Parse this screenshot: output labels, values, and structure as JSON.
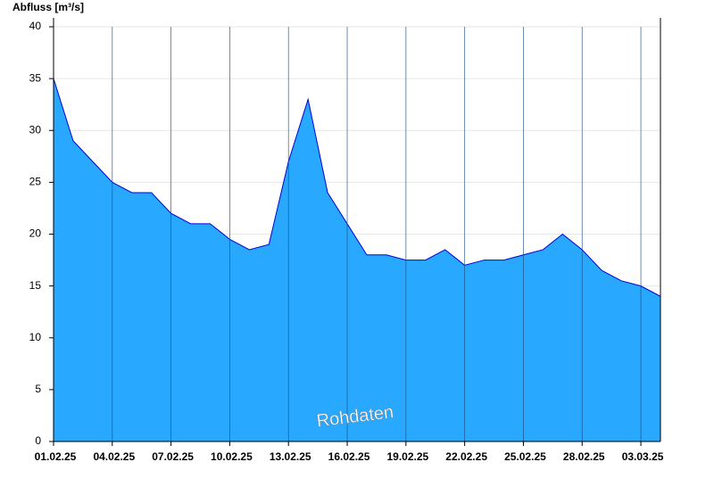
{
  "chart_data": {
    "type": "area",
    "y_label": "Abfluss [m³/s]",
    "annotation": "Rohdaten",
    "x": [
      "2025-02-01",
      "2025-02-02",
      "2025-02-03",
      "2025-02-04",
      "2025-02-05",
      "2025-02-06",
      "2025-02-07",
      "2025-02-08",
      "2025-02-09",
      "2025-02-10",
      "2025-02-11",
      "2025-02-12",
      "2025-02-13",
      "2025-02-14",
      "2025-02-15",
      "2025-02-16",
      "2025-02-17",
      "2025-02-18",
      "2025-02-19",
      "2025-02-20",
      "2025-02-21",
      "2025-02-22",
      "2025-02-23",
      "2025-02-24",
      "2025-02-25",
      "2025-02-26",
      "2025-02-27",
      "2025-02-28",
      "2025-03-01",
      "2025-03-02",
      "2025-03-03",
      "2025-03-04"
    ],
    "values": [
      35,
      29,
      27,
      25,
      24,
      24,
      22,
      21,
      21,
      19.5,
      18.5,
      19,
      27,
      33,
      24,
      21,
      18,
      18,
      17.5,
      17.5,
      18.5,
      17,
      17.5,
      17.5,
      18,
      18.5,
      20,
      18.5,
      16.5,
      15.5,
      15,
      14
    ],
    "fill": "#29a8ff",
    "line_color": "#0000dd",
    "xlim": [
      "2025-02-01",
      "2025-03-04"
    ],
    "xticks": [
      {
        "value": "2025-02-01",
        "label": "01.02.25"
      },
      {
        "value": "2025-02-04",
        "label": "04.02.25"
      },
      {
        "value": "2025-02-07",
        "label": "07.02.25"
      },
      {
        "value": "2025-02-10",
        "label": "10.02.25"
      },
      {
        "value": "2025-02-13",
        "label": "13.02.25"
      },
      {
        "value": "2025-02-16",
        "label": "16.02.25"
      },
      {
        "value": "2025-02-19",
        "label": "19.02.25"
      },
      {
        "value": "2025-02-22",
        "label": "22.02.25"
      },
      {
        "value": "2025-02-25",
        "label": "25.02.25"
      },
      {
        "value": "2025-02-28",
        "label": "28.02.25"
      },
      {
        "value": "2025-03-03",
        "label": "03.03.25"
      }
    ],
    "ylim": [
      0,
      40
    ],
    "yticks": [
      0,
      5,
      10,
      15,
      20,
      25,
      30,
      35,
      40
    ],
    "grid": true
  }
}
